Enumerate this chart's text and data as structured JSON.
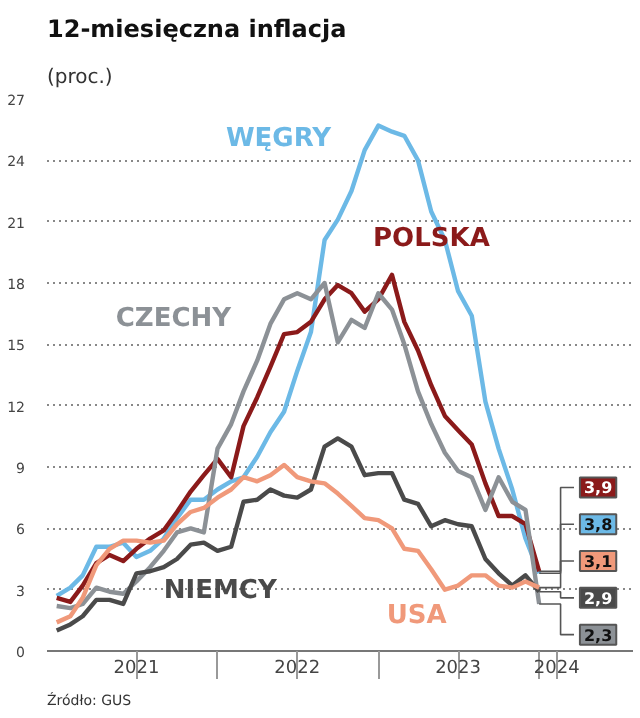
{
  "chart_data": {
    "type": "line",
    "title": "12-miesięczna inflacja",
    "subtitle": "(proc.)",
    "x": [
      "2021-01",
      "2021-02",
      "2021-03",
      "2021-04",
      "2021-05",
      "2021-06",
      "2021-07",
      "2021-08",
      "2021-09",
      "2021-10",
      "2021-11",
      "2021-12",
      "2022-01",
      "2022-02",
      "2022-03",
      "2022-04",
      "2022-05",
      "2022-06",
      "2022-07",
      "2022-08",
      "2022-09",
      "2022-10",
      "2022-11",
      "2022-12",
      "2023-01",
      "2023-02",
      "2023-03",
      "2023-04",
      "2023-05",
      "2023-06",
      "2023-07",
      "2023-08",
      "2023-09",
      "2023-10",
      "2023-11",
      "2023-12",
      "2024-01"
    ],
    "series": [
      {
        "name": "WĘGRY",
        "color": "#6cb9e6",
        "values": [
          2.7,
          3.1,
          3.7,
          5.1,
          5.1,
          5.3,
          4.6,
          4.9,
          5.5,
          6.5,
          7.4,
          7.4,
          7.9,
          8.3,
          8.5,
          9.5,
          10.7,
          11.7,
          13.7,
          15.6,
          20.1,
          21.1,
          22.5,
          24.5,
          25.7,
          25.4,
          25.2,
          24.0,
          21.5,
          20.1,
          17.6,
          16.4,
          12.2,
          9.9,
          7.9,
          5.5,
          3.8
        ],
        "value_labels": [
          null,
          null,
          null,
          null,
          null,
          null,
          null,
          null,
          null,
          null,
          null,
          null,
          null,
          null,
          null,
          null,
          null,
          null,
          null,
          null,
          null,
          null,
          null,
          null,
          null,
          null,
          null,
          null,
          null,
          null,
          null,
          null,
          null,
          null,
          null,
          null,
          "3,8"
        ]
      },
      {
        "name": "POLSKA",
        "color": "#8b1a1a",
        "values": [
          2.6,
          2.4,
          3.2,
          4.3,
          4.7,
          4.4,
          5.0,
          5.5,
          5.9,
          6.8,
          7.8,
          8.6,
          9.4,
          8.5,
          11.0,
          12.4,
          13.9,
          15.5,
          15.6,
          16.1,
          17.2,
          17.9,
          17.5,
          16.6,
          17.2,
          18.4,
          16.1,
          14.7,
          13.0,
          11.5,
          10.8,
          10.1,
          8.2,
          6.6,
          6.6,
          6.2,
          3.9
        ],
        "value_labels": [
          null,
          null,
          null,
          null,
          null,
          null,
          null,
          null,
          null,
          null,
          null,
          null,
          null,
          null,
          null,
          null,
          null,
          null,
          null,
          null,
          null,
          null,
          null,
          null,
          null,
          null,
          null,
          null,
          null,
          null,
          null,
          null,
          null,
          null,
          null,
          null,
          "3,9"
        ]
      },
      {
        "name": "CZECHY",
        "color": "#8c9196",
        "values": [
          2.2,
          2.1,
          2.3,
          3.1,
          2.9,
          2.8,
          3.4,
          4.1,
          4.9,
          5.8,
          6.0,
          5.8,
          9.9,
          11.1,
          12.7,
          14.2,
          16.0,
          17.2,
          17.5,
          17.2,
          18.0,
          15.1,
          16.2,
          15.8,
          17.5,
          16.7,
          15.0,
          12.7,
          11.1,
          9.7,
          8.8,
          8.5,
          6.9,
          8.5,
          7.3,
          6.9,
          2.3
        ],
        "value_labels": [
          null,
          null,
          null,
          null,
          null,
          null,
          null,
          null,
          null,
          null,
          null,
          null,
          null,
          null,
          null,
          null,
          null,
          null,
          null,
          null,
          null,
          null,
          null,
          null,
          null,
          null,
          null,
          null,
          null,
          null,
          null,
          null,
          null,
          null,
          null,
          null,
          "2,3"
        ]
      },
      {
        "name": "NIEMCY",
        "color": "#4a4a4a",
        "values": [
          1.0,
          1.3,
          1.7,
          2.5,
          2.5,
          2.3,
          3.8,
          3.9,
          4.1,
          4.5,
          5.2,
          5.3,
          4.9,
          5.1,
          7.3,
          7.4,
          7.9,
          7.6,
          7.5,
          7.9,
          10.0,
          10.4,
          10.0,
          8.6,
          8.7,
          8.7,
          7.4,
          7.2,
          6.1,
          6.4,
          6.2,
          6.1,
          4.5,
          3.8,
          3.2,
          3.7,
          2.9
        ],
        "value_labels": [
          null,
          null,
          null,
          null,
          null,
          null,
          null,
          null,
          null,
          null,
          null,
          null,
          null,
          null,
          null,
          null,
          null,
          null,
          null,
          null,
          null,
          null,
          null,
          null,
          null,
          null,
          null,
          null,
          null,
          null,
          null,
          null,
          null,
          null,
          null,
          null,
          "2,9"
        ]
      },
      {
        "name": "USA",
        "color": "#f0997a",
        "values": [
          1.4,
          1.7,
          2.6,
          4.2,
          5.0,
          5.4,
          5.4,
          5.3,
          5.4,
          6.2,
          6.8,
          7.0,
          7.5,
          7.9,
          8.5,
          8.3,
          8.6,
          9.1,
          8.5,
          8.3,
          8.2,
          7.7,
          7.1,
          6.5,
          6.4,
          6.0,
          5.0,
          4.9,
          4.0,
          3.0,
          3.2,
          3.7,
          3.7,
          3.2,
          3.1,
          3.4,
          3.1
        ],
        "value_labels": [
          null,
          null,
          null,
          null,
          null,
          null,
          null,
          null,
          null,
          null,
          null,
          null,
          null,
          null,
          null,
          null,
          null,
          null,
          null,
          null,
          null,
          null,
          null,
          null,
          null,
          null,
          null,
          null,
          null,
          null,
          null,
          null,
          null,
          null,
          null,
          null,
          "3,1"
        ]
      }
    ],
    "xlim": [
      "2020-12-10",
      "2024-08-01"
    ],
    "xticks": [
      {
        "value": "2021-07-01",
        "label": "2021"
      },
      {
        "value": "2022-01-01",
        "label": null
      },
      {
        "value": "2022-07-01",
        "label": "2022"
      },
      {
        "value": "2023-01-01",
        "label": null
      },
      {
        "value": "2023-07-01",
        "label": "2023"
      },
      {
        "value": "2024-01-01",
        "label": null
      },
      {
        "value": "2024-02-10",
        "label": "2024"
      }
    ],
    "ylim": [
      0,
      27
    ],
    "yticks": [
      0,
      3,
      6,
      9,
      12,
      15,
      18,
      21,
      24,
      27
    ],
    "grid": "y",
    "legend": false,
    "line_style": "solid",
    "marker": "none",
    "annotations": [
      "Źródło: GUS"
    ]
  }
}
